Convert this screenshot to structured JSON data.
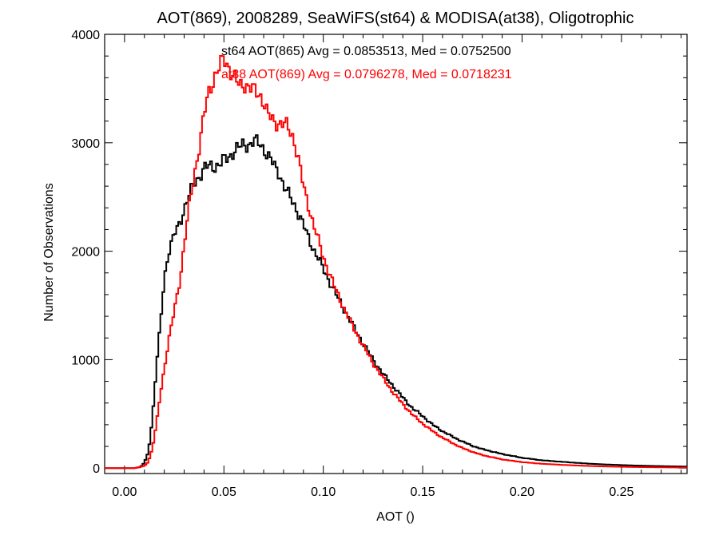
{
  "chart_data": {
    "type": "line",
    "title": "AOT(869), 2008289, SeaWiFS(st64) & MODISA(at38), Oligotrophic",
    "xlabel": "AOT ()",
    "ylabel": "Number of Observations",
    "xlim": [
      -0.01,
      0.283
    ],
    "ylim": [
      -50,
      4000
    ],
    "x_ticks": [
      0.0,
      0.05,
      0.1,
      0.15,
      0.2,
      0.25
    ],
    "x_tick_labels": [
      "0.00",
      "0.05",
      "0.10",
      "0.15",
      "0.20",
      "0.25"
    ],
    "y_ticks": [
      0,
      1000,
      2000,
      3000,
      4000
    ],
    "y_tick_labels": [
      "0",
      "1000",
      "2000",
      "3000",
      "4000"
    ],
    "grid": false,
    "step": true,
    "annotations": [
      {
        "text": "st64 AOT(865) Avg = 0.0853513, Med = 0.0752500",
        "color": "#000000"
      },
      {
        "text": "at38 AOT(869) Avg = 0.0796278, Med = 0.0718231",
        "color": "#ff0000"
      }
    ],
    "series": [
      {
        "color": "#000000",
        "x": [
          -0.01,
          0.0,
          0.005,
          0.008,
          0.01,
          0.012,
          0.014,
          0.016,
          0.018,
          0.02,
          0.022,
          0.025,
          0.028,
          0.03,
          0.032,
          0.035,
          0.038,
          0.04,
          0.043,
          0.045,
          0.048,
          0.05,
          0.053,
          0.055,
          0.058,
          0.06,
          0.063,
          0.065,
          0.068,
          0.07,
          0.072,
          0.075,
          0.078,
          0.08,
          0.085,
          0.09,
          0.095,
          0.1,
          0.105,
          0.11,
          0.115,
          0.12,
          0.125,
          0.13,
          0.135,
          0.14,
          0.145,
          0.15,
          0.155,
          0.16,
          0.165,
          0.17,
          0.175,
          0.18,
          0.19,
          0.2,
          0.21,
          0.22,
          0.23,
          0.24,
          0.25,
          0.26,
          0.27,
          0.283
        ],
        "y": [
          0,
          0,
          0,
          10,
          50,
          150,
          450,
          920,
          1320,
          1750,
          1980,
          2150,
          2270,
          2390,
          2490,
          2630,
          2700,
          2760,
          2790,
          2780,
          2800,
          2840,
          2880,
          2920,
          2960,
          2990,
          2980,
          3010,
          3000,
          2950,
          2880,
          2800,
          2720,
          2600,
          2450,
          2240,
          2020,
          1840,
          1650,
          1480,
          1310,
          1150,
          1000,
          870,
          760,
          650,
          550,
          480,
          400,
          340,
          290,
          245,
          205,
          175,
          130,
          95,
          72,
          58,
          45,
          35,
          28,
          22,
          18,
          14
        ]
      },
      {
        "color": "#ff0000",
        "x": [
          -0.01,
          0.0,
          0.005,
          0.01,
          0.012,
          0.014,
          0.016,
          0.018,
          0.02,
          0.022,
          0.025,
          0.028,
          0.03,
          0.032,
          0.035,
          0.038,
          0.04,
          0.042,
          0.045,
          0.048,
          0.05,
          0.052,
          0.055,
          0.058,
          0.06,
          0.062,
          0.065,
          0.068,
          0.07,
          0.072,
          0.075,
          0.078,
          0.08,
          0.082,
          0.085,
          0.088,
          0.09,
          0.095,
          0.1,
          0.105,
          0.11,
          0.115,
          0.12,
          0.125,
          0.13,
          0.135,
          0.14,
          0.145,
          0.15,
          0.155,
          0.16,
          0.165,
          0.17,
          0.175,
          0.18,
          0.19,
          0.2,
          0.21,
          0.22,
          0.23,
          0.24,
          0.25,
          0.26,
          0.27,
          0.283
        ],
        "y": [
          0,
          0,
          0,
          20,
          60,
          180,
          400,
          680,
          920,
          1150,
          1450,
          1750,
          2050,
          2350,
          2700,
          3000,
          3250,
          3450,
          3600,
          3700,
          3780,
          3720,
          3600,
          3520,
          3550,
          3520,
          3480,
          3450,
          3380,
          3260,
          3200,
          3180,
          3170,
          3150,
          3050,
          2800,
          2600,
          2250,
          1950,
          1700,
          1490,
          1300,
          1130,
          970,
          830,
          700,
          590,
          490,
          410,
          340,
          280,
          230,
          185,
          150,
          120,
          80,
          55,
          40,
          30,
          22,
          16,
          12,
          9,
          7,
          5
        ]
      }
    ]
  }
}
